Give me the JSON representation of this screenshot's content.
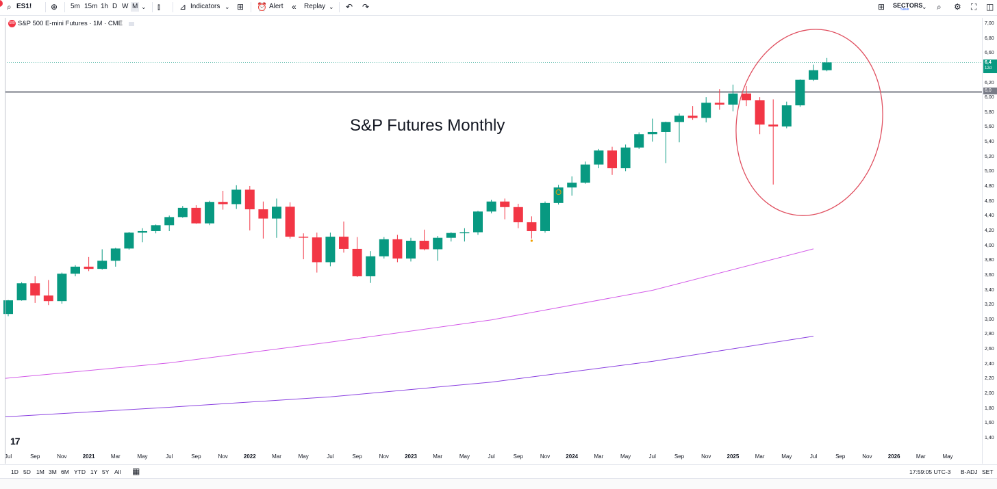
{
  "toolbar": {
    "symbol": "ES1!",
    "intervals": [
      "5m",
      "15m",
      "1h",
      "D",
      "W",
      "M"
    ],
    "indicators_label": "Indicators",
    "alert_label": "Alert",
    "replay_label": "Replay",
    "sectors_label": "SECTORS",
    "sectors_sub": "Save"
  },
  "legend": {
    "badge": "500",
    "text": "S&P 500 E-mini Futures · 1M · CME"
  },
  "annotation": {
    "text": "S&P Futures Monthly"
  },
  "price_axis": {
    "ticks": [
      "7,00",
      "6,80",
      "6,60",
      "6,20",
      "6,00",
      "5,80",
      "5,60",
      "5,40",
      "5,20",
      "5,00",
      "4,80",
      "4,60",
      "4,40",
      "4,20",
      "4,00",
      "3,80",
      "3,60",
      "3,40",
      "3,20",
      "3,00",
      "2,80",
      "2,60",
      "2,40",
      "2,20",
      "2,00",
      "1,80",
      "1,60",
      "1,40"
    ],
    "last_price_label": "6,4",
    "last_price_countdown": "12d",
    "level_label": "6,0"
  },
  "time_axis": {
    "labels": [
      "Jul",
      "Sep",
      "Nov",
      "2021",
      "Mar",
      "May",
      "Jul",
      "Sep",
      "Nov",
      "2022",
      "Mar",
      "May",
      "Jul",
      "Sep",
      "Nov",
      "2023",
      "Mar",
      "May",
      "Jul",
      "Sep",
      "Nov",
      "2024",
      "Mar",
      "May",
      "Jul",
      "Sep",
      "Nov",
      "2025",
      "Mar",
      "May",
      "Jul",
      "Sep",
      "Nov",
      "2026",
      "Mar",
      "May"
    ]
  },
  "bottom_bar": {
    "ranges": [
      "1D",
      "5D",
      "1M",
      "3M",
      "6M",
      "YTD",
      "1Y",
      "5Y",
      "All"
    ],
    "clock": "17:59:05 UTC-3",
    "adjust": "B-ADJ",
    "session": "SET"
  },
  "colors": {
    "up": "#089981",
    "down": "#f23645",
    "ma_fast": "#d35ae8",
    "ma_slow": "#8a3fe0",
    "circle": "#e05060",
    "level": "#787b86"
  },
  "chart_data": {
    "type": "candlestick",
    "x": [
      "2020-07",
      "2020-08",
      "2020-09",
      "2020-10",
      "2020-11",
      "2020-12",
      "2021-01",
      "2021-02",
      "2021-03",
      "2021-04",
      "2021-05",
      "2021-06",
      "2021-07",
      "2021-08",
      "2021-09",
      "2021-10",
      "2021-11",
      "2021-12",
      "2022-01",
      "2022-02",
      "2022-03",
      "2022-04",
      "2022-05",
      "2022-06",
      "2022-07",
      "2022-08",
      "2022-09",
      "2022-10",
      "2022-11",
      "2022-12",
      "2023-01",
      "2023-02",
      "2023-03",
      "2023-04",
      "2023-05",
      "2023-06",
      "2023-07",
      "2023-08",
      "2023-09",
      "2023-10",
      "2023-11",
      "2023-12",
      "2024-01",
      "2024-02",
      "2024-03",
      "2024-04",
      "2024-05",
      "2024-06",
      "2024-07",
      "2024-08",
      "2024-09",
      "2024-10",
      "2024-11",
      "2024-12",
      "2025-01",
      "2025-02",
      "2025-03",
      "2025-04",
      "2025-05",
      "2025-06",
      "2025-07",
      "2025-08"
    ],
    "series": [
      {
        "open": [
          3080,
          3265,
          3495,
          3330,
          3255,
          3625,
          3720,
          3690,
          3800,
          3965,
          4180,
          4200,
          4280,
          4390,
          4515,
          4305,
          4595,
          4565,
          4760,
          4495,
          4370,
          4530,
          4125,
          4115,
          3780,
          4125,
          3960,
          3590,
          3860,
          4090,
          3830,
          4070,
          3955,
          4110,
          4175,
          4185,
          4465,
          4600,
          4525,
          4320,
          4200,
          4580,
          4790,
          4855,
          5100,
          5290,
          5050,
          5330,
          5510,
          5540,
          5675,
          5760,
          5730,
          5935,
          5910,
          6060,
          5970,
          5640,
          5615,
          5900,
          6245,
          6375
        ],
        "close": [
          3265,
          3495,
          3330,
          3255,
          3625,
          3720,
          3690,
          3800,
          3965,
          4180,
          4200,
          4280,
          4390,
          4515,
          4305,
          4595,
          4565,
          4760,
          4495,
          4370,
          4530,
          4125,
          4115,
          3780,
          4125,
          3960,
          3590,
          3860,
          4090,
          3830,
          4070,
          3955,
          4110,
          4175,
          4185,
          4465,
          4600,
          4525,
          4320,
          4200,
          4580,
          4790,
          4855,
          5100,
          5290,
          5050,
          5330,
          5510,
          5540,
          5675,
          5760,
          5730,
          5935,
          5910,
          6060,
          5970,
          5640,
          5615,
          5900,
          6245,
          6375,
          6480
        ],
        "high": [
          3270,
          3510,
          3590,
          3540,
          3640,
          3740,
          3850,
          3955,
          3975,
          4190,
          4240,
          4290,
          4410,
          4540,
          4550,
          4610,
          4745,
          4820,
          4810,
          4600,
          4640,
          4590,
          4170,
          4180,
          4180,
          4330,
          4120,
          3930,
          4120,
          4150,
          4110,
          4220,
          4135,
          4185,
          4240,
          4475,
          4625,
          4640,
          4570,
          4400,
          4600,
          4825,
          4940,
          5140,
          5310,
          5340,
          5370,
          5535,
          5720,
          5680,
          5790,
          5890,
          6010,
          6120,
          6180,
          6160,
          6010,
          5980,
          5950,
          6250,
          6450,
          6540
        ],
        "low": [
          3050,
          3260,
          3230,
          3200,
          3220,
          3590,
          3660,
          3680,
          3720,
          3950,
          4050,
          4170,
          4200,
          4380,
          4300,
          4280,
          4490,
          4500,
          4210,
          4100,
          4110,
          4100,
          3820,
          3640,
          3725,
          3910,
          3580,
          3500,
          3830,
          3780,
          3790,
          3940,
          3800,
          4060,
          4060,
          4150,
          4440,
          4360,
          4240,
          4100,
          4180,
          4560,
          4680,
          4840,
          5050,
          4960,
          5010,
          5310,
          5410,
          5120,
          5400,
          5705,
          5670,
          5840,
          5820,
          5890,
          5510,
          4830,
          5590,
          5880,
          6230,
          6360
        ]
      }
    ],
    "moving_averages": [
      {
        "x": [
          "2020-07",
          "2021-07",
          "2022-07",
          "2023-07",
          "2024-07",
          "2025-07"
        ],
        "values": [
          2210,
          2420,
          2700,
          3000,
          3400,
          3960
        ]
      },
      {
        "x": [
          "2020-07",
          "2021-07",
          "2022-07",
          "2023-07",
          "2024-07",
          "2025-07"
        ],
        "values": [
          1690,
          1820,
          1960,
          2160,
          2440,
          2780
        ]
      }
    ],
    "horizontal_level": 6080,
    "ylim": [
      1300,
      7000
    ]
  }
}
